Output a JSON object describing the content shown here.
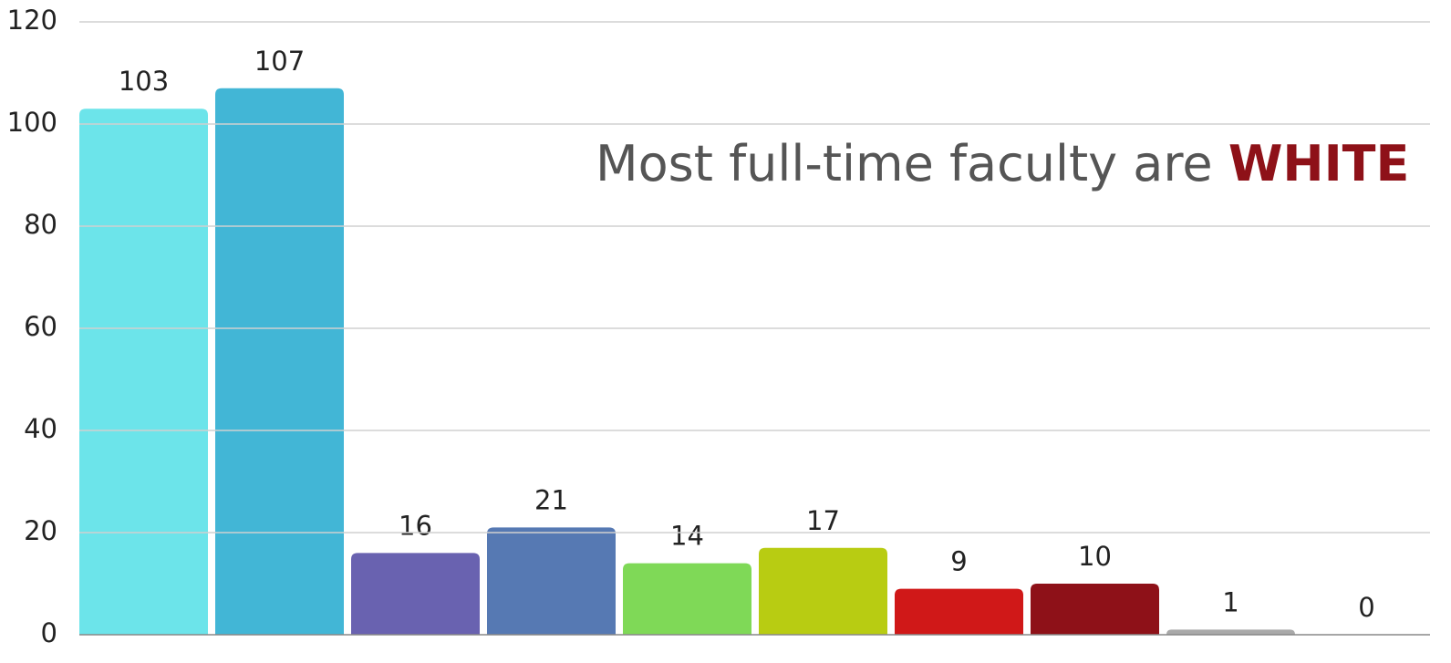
{
  "chart_data": {
    "type": "bar",
    "annotation": {
      "text": "Most full-time faculty are ",
      "highlight": "WHITE",
      "highlight_color": "#8e1118"
    },
    "categories": [
      null,
      null,
      null,
      null,
      null,
      null,
      null,
      null,
      null,
      null
    ],
    "values": [
      103,
      107,
      16,
      21,
      14,
      17,
      9,
      10,
      1,
      0
    ],
    "colors": [
      "#6ce4ea",
      "#42b6d6",
      "#6962b0",
      "#5679b3",
      "#7fd957",
      "#b8cc12",
      "#d01818",
      "#8e1118",
      "#a9a9a9",
      "#8c8c8c"
    ],
    "ylim": [
      0,
      120
    ],
    "yticks": [
      0,
      20,
      40,
      60,
      80,
      100,
      120
    ],
    "grid": true
  }
}
